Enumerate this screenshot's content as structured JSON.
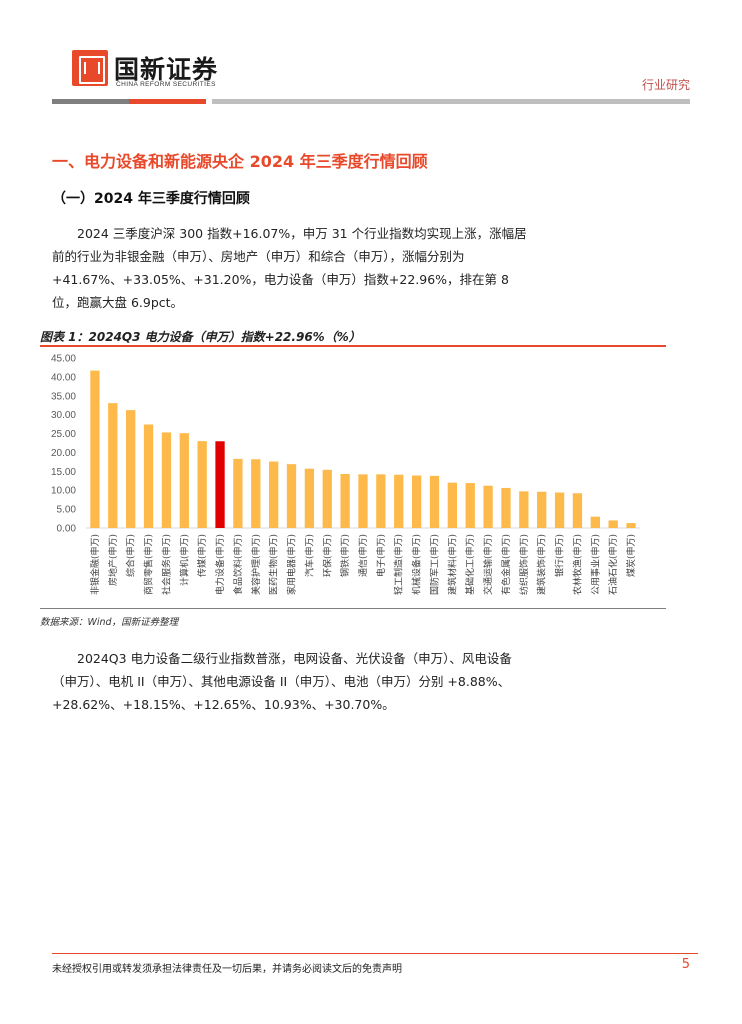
{
  "header": {
    "brand_name": "国新证券",
    "brand_sub": "CHINA REFORM SECURITIES",
    "doc_type": "行业研究"
  },
  "section": {
    "h1": "一、电力设备和新能源央企 2024 年三季度行情回顾",
    "h2": "（一）2024 年三季度行情回顾",
    "para1": "2024 三季度沪深 300 指数+16.07%，申万 31 个行业指数均实现上涨，涨幅居前的行业为非银金融（申万）、房地产（申万）和综合（申万），涨幅分别为 +41.67%、+33.05%、+31.20%，电力设备（申万）指数+22.96%，排在第 8 位，跑赢大盘 6.9pct。",
    "para2": "2024Q3 电力设备二级行业指数普涨，电网设备、光伏设备（申万）、风电设备（申万）、电机 II（申万）、其他电源设备 II（申万）、电池（申万）分别 +8.88%、+28.62%、+18.15%、+12.65%、10.93%、+30.70%。"
  },
  "figure": {
    "title": "图表 1：2024Q3 电力设备（申万）指数+22.96%（%）",
    "source": "数据来源：Wind，国新证券整理"
  },
  "chart_data": {
    "type": "bar",
    "title": "",
    "xlabel": "",
    "ylabel": "",
    "ylim": [
      0,
      45
    ],
    "yticks": [
      "45.00",
      "40.00",
      "35.00",
      "30.00",
      "25.00",
      "20.00",
      "15.00",
      "10.00",
      "5.00",
      "0.00"
    ],
    "grid": false,
    "bar_color": "#fdb94a",
    "highlight_color": "#e00000",
    "highlight_category": "电力设备(申万)",
    "categories": [
      "非银金融(申万)",
      "房地产(申万)",
      "综合(申万)",
      "商贸零售(申万)",
      "社会服务(申万)",
      "计算机(申万)",
      "传媒(申万)",
      "电力设备(申万)",
      "食品饮料(申万)",
      "美容护理(申万)",
      "医药生物(申万)",
      "家用电器(申万)",
      "汽车(申万)",
      "环保(申万)",
      "钢铁(申万)",
      "通信(申万)",
      "电子(申万)",
      "轻工制造(申万)",
      "机械设备(申万)",
      "国防军工(申万)",
      "建筑材料(申万)",
      "基础化工(申万)",
      "交通运输(申万)",
      "有色金属(申万)",
      "纺织服饰(申万)",
      "建筑装饰(申万)",
      "银行(申万)",
      "农林牧渔(申万)",
      "公用事业(申万)",
      "石油石化(申万)",
      "煤炭(申万)"
    ],
    "values": [
      41.67,
      33.05,
      31.2,
      27.4,
      25.3,
      25.1,
      23.0,
      22.96,
      18.3,
      18.2,
      17.6,
      16.9,
      15.7,
      15.4,
      14.3,
      14.2,
      14.2,
      14.1,
      13.9,
      13.8,
      12.0,
      11.9,
      11.2,
      10.6,
      9.7,
      9.6,
      9.4,
      9.2,
      3.0,
      2.0,
      1.3
    ]
  },
  "footer": {
    "disclaimer": "未经授权引用或转发须承担法律责任及一切后果，并请务必阅读文后的免责声明",
    "page_number": "5"
  }
}
